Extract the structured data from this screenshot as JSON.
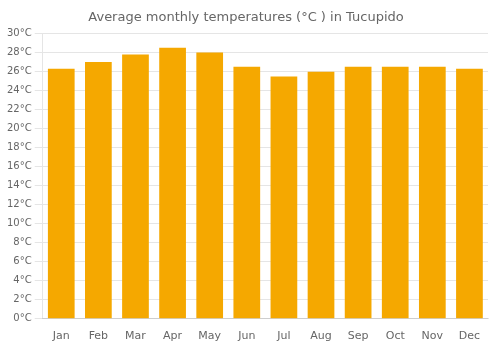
{
  "chart_data": {
    "type": "bar",
    "title": "Average monthly temperatures (°C ) in Tucupido",
    "categories": [
      "Jan",
      "Feb",
      "Mar",
      "Apr",
      "May",
      "Jun",
      "Jul",
      "Aug",
      "Sep",
      "Oct",
      "Nov",
      "Dec"
    ],
    "values": [
      26.3,
      27.0,
      27.8,
      28.5,
      28.0,
      26.5,
      25.5,
      26.0,
      26.5,
      26.5,
      26.5,
      26.3
    ],
    "color": "#F5A800",
    "ylim": [
      0,
      30
    ],
    "yticks": [
      {
        "value": 0,
        "label": "0°C"
      },
      {
        "value": 2,
        "label": "2°C"
      },
      {
        "value": 4,
        "label": "4°C"
      },
      {
        "value": 6,
        "label": "6°C"
      },
      {
        "value": 8,
        "label": "8°C"
      },
      {
        "value": 10,
        "label": "10°C"
      },
      {
        "value": 12,
        "label": "12°C"
      },
      {
        "value": 14,
        "label": "14°C"
      },
      {
        "value": 16,
        "label": "16°C"
      },
      {
        "value": 18,
        "label": "18°C"
      },
      {
        "value": 20,
        "label": "20°C"
      },
      {
        "value": 22,
        "label": "22°C"
      },
      {
        "value": 24,
        "label": "24°C"
      },
      {
        "value": 26,
        "label": "26°C"
      },
      {
        "value": 28,
        "label": "28°C"
      },
      {
        "value": 30,
        "label": "30°C"
      }
    ],
    "grid": true
  }
}
